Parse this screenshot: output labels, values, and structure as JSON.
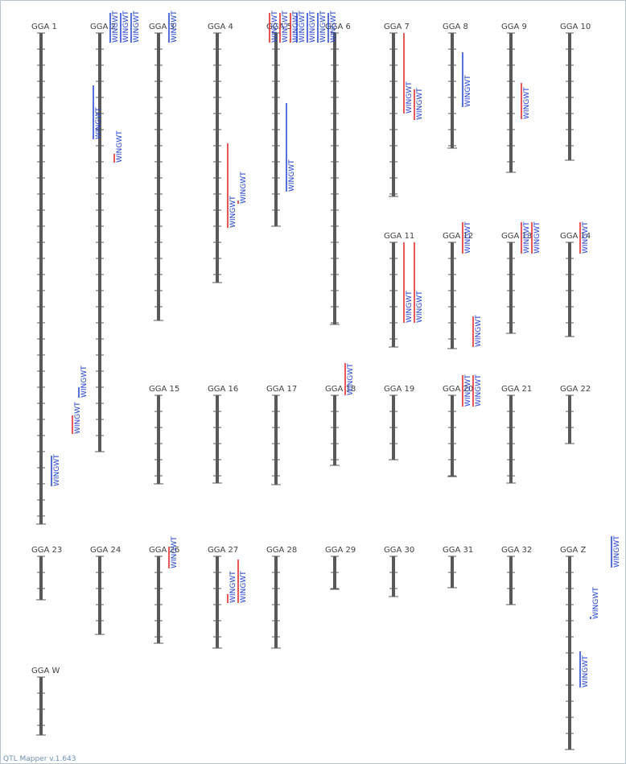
{
  "app": {
    "footer": "QTL Mapper v.1.643"
  },
  "colors": {
    "chromosome": "#595959",
    "tick": "#595959",
    "label": "#404040",
    "qtl_red": "#e02020",
    "qtl_blue": "#2040d0"
  },
  "trait": "WINGWT",
  "chromosomes": [
    {
      "name": "GGA 1",
      "row": 1,
      "col": 1,
      "length": 610
    },
    {
      "name": "GGA 2",
      "row": 1,
      "col": 2,
      "length": 520
    },
    {
      "name": "GGA 3",
      "row": 1,
      "col": 3,
      "length": 357
    },
    {
      "name": "GGA 4",
      "row": 1,
      "col": 4,
      "length": 310
    },
    {
      "name": "GGA 5",
      "row": 1,
      "col": 5,
      "length": 240
    },
    {
      "name": "GGA 6",
      "row": 1,
      "col": 6,
      "length": 362
    },
    {
      "name": "GGA 7",
      "row": 1,
      "col": 7,
      "length": 203
    },
    {
      "name": "GGA 8",
      "row": 1,
      "col": 8,
      "length": 143
    },
    {
      "name": "GGA 9",
      "row": 1,
      "col": 9,
      "length": 173
    },
    {
      "name": "GGA 10",
      "row": 1,
      "col": 10,
      "length": 158
    },
    {
      "name": "GGA 11",
      "row": 2,
      "col": 7,
      "length": 130
    },
    {
      "name": "GGA 12",
      "row": 2,
      "col": 8,
      "length": 132
    },
    {
      "name": "GGA 13",
      "row": 2,
      "col": 9,
      "length": 113
    },
    {
      "name": "GGA 14",
      "row": 2,
      "col": 10,
      "length": 117
    },
    {
      "name": "GGA 15",
      "row": 3,
      "col": 3,
      "length": 110
    },
    {
      "name": "GGA 16",
      "row": 3,
      "col": 4,
      "length": 109
    },
    {
      "name": "GGA 17",
      "row": 3,
      "col": 5,
      "length": 111
    },
    {
      "name": "GGA 18",
      "row": 3,
      "col": 6,
      "length": 87
    },
    {
      "name": "GGA 19",
      "row": 3,
      "col": 7,
      "length": 80
    },
    {
      "name": "GGA 20",
      "row": 3,
      "col": 8,
      "length": 101
    },
    {
      "name": "GGA 21",
      "row": 3,
      "col": 9,
      "length": 109
    },
    {
      "name": "GGA 22",
      "row": 3,
      "col": 10,
      "length": 60
    },
    {
      "name": "GGA 23",
      "row": 4,
      "col": 1,
      "length": 54
    },
    {
      "name": "GGA 24",
      "row": 4,
      "col": 2,
      "length": 97
    },
    {
      "name": "GGA 26",
      "row": 4,
      "col": 3,
      "length": 108
    },
    {
      "name": "GGA 27",
      "row": 4,
      "col": 4,
      "length": 114
    },
    {
      "name": "GGA 28",
      "row": 4,
      "col": 5,
      "length": 114
    },
    {
      "name": "GGA 29",
      "row": 4,
      "col": 6,
      "length": 41
    },
    {
      "name": "GGA 30",
      "row": 4,
      "col": 7,
      "length": 50
    },
    {
      "name": "GGA 31",
      "row": 4,
      "col": 8,
      "length": 39
    },
    {
      "name": "GGA 32",
      "row": 4,
      "col": 9,
      "length": 60
    },
    {
      "name": "GGA Z",
      "row": 4,
      "col": 10,
      "length": 240
    },
    {
      "name": "GGA W",
      "row": 5,
      "col": 1,
      "length": 72
    }
  ],
  "qtls": [
    {
      "chr": "GGA 1",
      "lane": 5,
      "start": 65,
      "end": 132,
      "color": "blue"
    },
    {
      "chr": "GGA 1",
      "lane": 7,
      "start": 150,
      "end": 161,
      "color": "red"
    },
    {
      "chr": "GGA 1",
      "lane": 3,
      "start": 475,
      "end": 498,
      "color": "red"
    },
    {
      "chr": "GGA 1",
      "lane": 1,
      "start": 525,
      "end": 563,
      "color": "blue"
    },
    {
      "chr": "GGA 2",
      "lane": 1,
      "start": -25,
      "end": 12,
      "color": "blue"
    },
    {
      "chr": "GGA 2",
      "lane": 2,
      "start": -25,
      "end": 12,
      "color": "blue"
    },
    {
      "chr": "GGA 2",
      "lane": 3,
      "start": -25,
      "end": 12,
      "color": "blue"
    },
    {
      "chr": "GGA 2",
      "lane": -2,
      "start": 440,
      "end": 453,
      "color": "blue"
    },
    {
      "chr": "GGA 3",
      "lane": 1,
      "start": -25,
      "end": 12,
      "color": "blue"
    },
    {
      "chr": "GGA 4",
      "lane": 5,
      "start": -25,
      "end": 12,
      "color": "red"
    },
    {
      "chr": "GGA 4",
      "lane": 6,
      "start": -25,
      "end": 12,
      "color": "red"
    },
    {
      "chr": "GGA 4",
      "lane": 7,
      "start": -25,
      "end": 12,
      "color": "red"
    },
    {
      "chr": "GGA 4",
      "lane": 1,
      "start": 137,
      "end": 242,
      "color": "red"
    },
    {
      "chr": "GGA 4",
      "lane": 2,
      "start": 208,
      "end": 212,
      "color": "red"
    },
    {
      "chr": "GGA 5",
      "lane": 2,
      "start": -25,
      "end": 12,
      "color": "blue"
    },
    {
      "chr": "GGA 5",
      "lane": 3,
      "start": -25,
      "end": 12,
      "color": "blue"
    },
    {
      "chr": "GGA 5",
      "lane": 4,
      "start": -25,
      "end": 12,
      "color": "blue"
    },
    {
      "chr": "GGA 5",
      "lane": 5,
      "start": -25,
      "end": 12,
      "color": "blue"
    },
    {
      "chr": "GGA 5",
      "lane": 1,
      "start": 87,
      "end": 197,
      "color": "blue"
    },
    {
      "chr": "GGA 7",
      "lane": 1,
      "start": 0,
      "end": 100,
      "color": "red"
    },
    {
      "chr": "GGA 7",
      "lane": 2,
      "start": 70,
      "end": 108,
      "color": "red"
    },
    {
      "chr": "GGA 8",
      "lane": 1,
      "start": 24,
      "end": 92,
      "color": "blue"
    },
    {
      "chr": "GGA 9",
      "lane": 1,
      "start": 62,
      "end": 107,
      "color": "red"
    },
    {
      "chr": "GGA 11",
      "lane": 1,
      "start": 0,
      "end": 100,
      "color": "red"
    },
    {
      "chr": "GGA 11",
      "lane": 2,
      "start": 0,
      "end": 100,
      "color": "red"
    },
    {
      "chr": "GGA 12",
      "lane": 1,
      "start": -25,
      "end": 14,
      "color": "red"
    },
    {
      "chr": "GGA 12",
      "lane": 2,
      "start": 92,
      "end": 130,
      "color": "red"
    },
    {
      "chr": "GGA 13",
      "lane": 1,
      "start": -25,
      "end": 14,
      "color": "red"
    },
    {
      "chr": "GGA 13",
      "lane": 2,
      "start": -25,
      "end": 14,
      "color": "red"
    },
    {
      "chr": "GGA 14",
      "lane": 1,
      "start": -25,
      "end": 14,
      "color": "red"
    },
    {
      "chr": "GGA 18",
      "lane": 1,
      "start": -40,
      "end": 0,
      "color": "red"
    },
    {
      "chr": "GGA 20",
      "lane": 1,
      "start": -25,
      "end": 14,
      "color": "red"
    },
    {
      "chr": "GGA 20",
      "lane": 2,
      "start": -25,
      "end": 14,
      "color": "red"
    },
    {
      "chr": "GGA 26",
      "lane": 1,
      "start": -12,
      "end": 15,
      "color": "red"
    },
    {
      "chr": "GGA 27",
      "lane": 1,
      "start": 47,
      "end": 58,
      "color": "red"
    },
    {
      "chr": "GGA 27",
      "lane": 2,
      "start": 4,
      "end": 58,
      "color": "red"
    },
    {
      "chr": "GGA Z",
      "lane": 4,
      "start": -25,
      "end": 14,
      "color": "blue"
    },
    {
      "chr": "GGA Z",
      "lane": 2,
      "start": 75,
      "end": 78,
      "color": "blue"
    },
    {
      "chr": "GGA Z",
      "lane": 1,
      "start": 118,
      "end": 163,
      "color": "blue"
    }
  ]
}
